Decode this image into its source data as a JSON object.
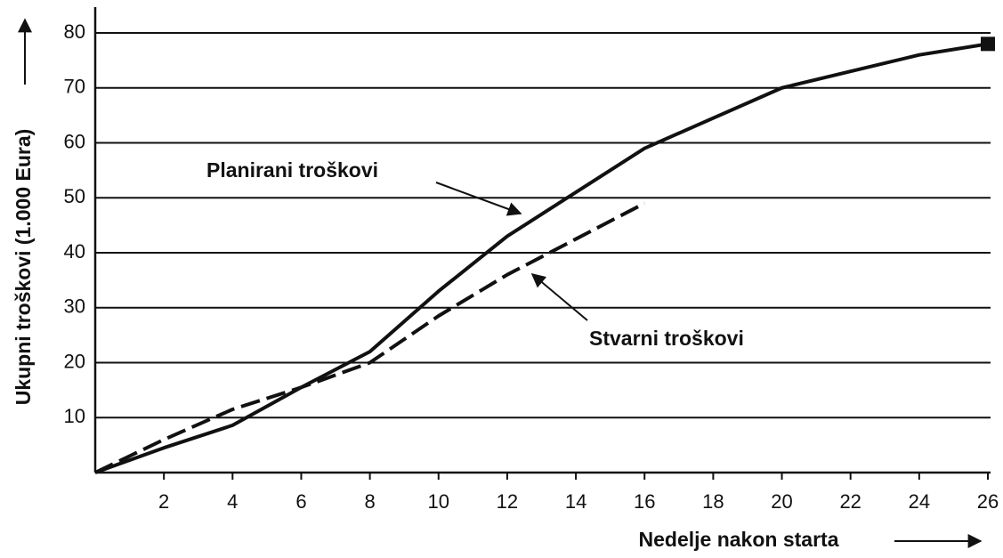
{
  "chart_data": {
    "type": "line",
    "x": [
      0,
      2,
      4,
      6,
      8,
      10,
      12,
      14,
      16,
      18,
      20,
      22,
      24,
      26
    ],
    "series": [
      {
        "name": "Planirani troškovi",
        "color": "#111111",
        "dash": false,
        "values": [
          0,
          4.5,
          8.6,
          15.5,
          22,
          33,
          43,
          51,
          59,
          64.5,
          70,
          73,
          76,
          78
        ]
      },
      {
        "name": "Stvarni troškovi",
        "color": "#111111",
        "dash": true,
        "values": [
          0,
          6,
          11.5,
          15.5,
          20,
          28.5,
          36,
          42.5,
          49,
          null,
          null,
          null,
          null,
          null
        ]
      }
    ],
    "xlabel": "Nedelje nakon starta",
    "ylabel": "Ukupni troškovi (1.000 Eura)",
    "xlim": [
      0,
      26
    ],
    "ylim": [
      0,
      80
    ],
    "xticks": [
      2,
      4,
      6,
      8,
      10,
      12,
      14,
      16,
      18,
      20,
      22,
      24,
      26
    ],
    "yticks": [
      10,
      20,
      30,
      40,
      50,
      60,
      70,
      80
    ],
    "grid": true
  }
}
